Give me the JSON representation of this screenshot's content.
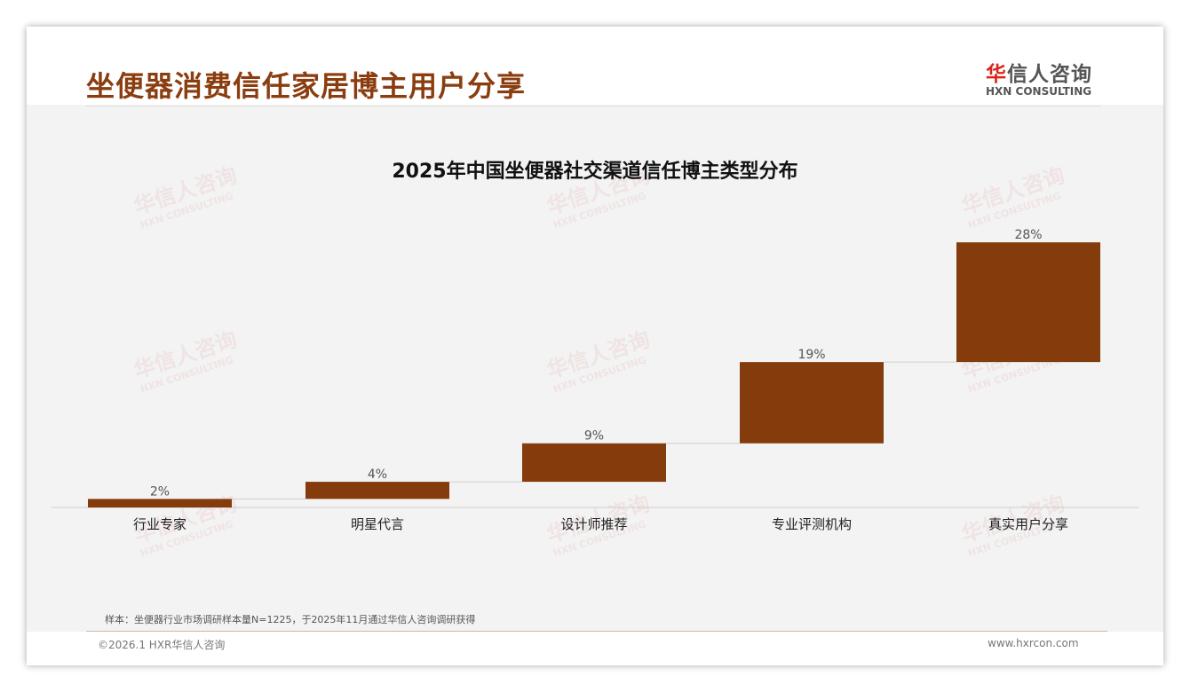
{
  "header": {
    "title": "坐便器消费信任家居博主用户分享",
    "logo_cn_red": "华",
    "logo_cn": "信人咨询",
    "logo_en": "HXN CONSULTING"
  },
  "watermark": {
    "cn": "华信人咨询",
    "en": "HXN CONSULTING"
  },
  "chart_data": {
    "type": "bar",
    "subtype": "waterfall",
    "title": "2025年中国坐便器社交渠道信任博主类型分布",
    "categories": [
      "行业专家",
      "明星代言",
      "设计师推荐",
      "专业评测机构",
      "真实用户分享"
    ],
    "values": [
      2,
      4,
      9,
      19,
      28
    ],
    "data_labels": [
      "2%",
      "4%",
      "9%",
      "19%",
      "28%"
    ],
    "color": "#843c0c",
    "ylim": [
      0,
      64
    ],
    "grid": false,
    "legend": "none"
  },
  "footer": {
    "note": "样本：坐便器行业市场调研样本量N=1225，于2025年11月通过华信人咨询调研获得",
    "copyright": "©2026.1 HXR华信人咨询",
    "url": "www.hxrcon.com"
  }
}
